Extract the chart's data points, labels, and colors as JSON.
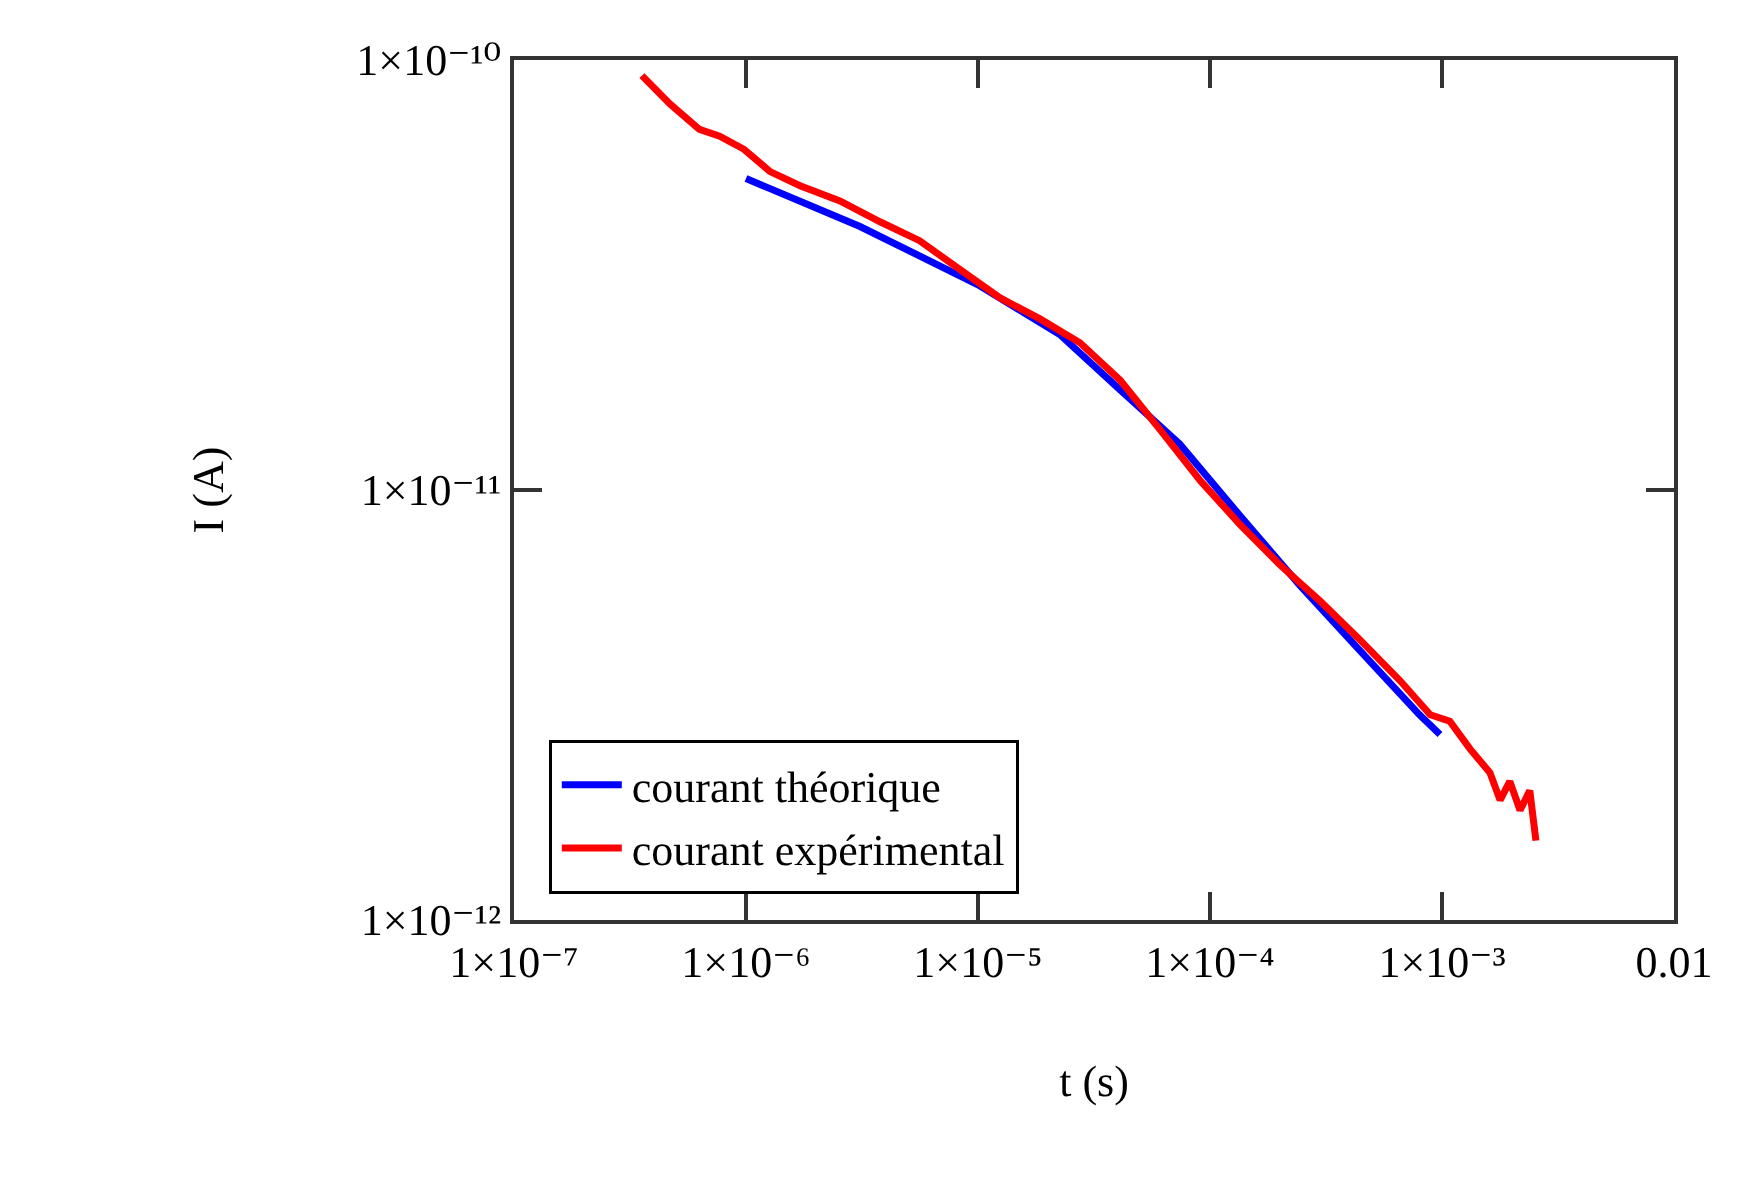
{
  "chart_data": {
    "type": "line",
    "xlabel": "t (s)",
    "ylabel": "I (A)",
    "log": "xy",
    "grid": false,
    "legend": "bottom left",
    "line_style": "solid",
    "marker": "none",
    "xlim": [
      1e-07,
      0.01
    ],
    "xticks": [
      {
        "value": 1e-07,
        "label": "1×10⁻⁷"
      },
      {
        "value": 1e-06,
        "label": "1×10⁻⁶"
      },
      {
        "value": 1e-05,
        "label": "1×10⁻⁵"
      },
      {
        "value": 0.0001,
        "label": "1×10⁻⁴"
      },
      {
        "value": 0.001,
        "label": "1×10⁻³"
      },
      0.01
    ],
    "ylim": [
      1e-12,
      1e-10
    ],
    "yticks": [
      {
        "value": 1e-12,
        "label": "1×10⁻¹²"
      },
      {
        "value": 1e-11,
        "label": "1×10⁻¹¹"
      },
      {
        "value": 1e-10,
        "label": "1×10⁻¹⁰"
      }
    ],
    "series": [
      {
        "name": "courant théorique",
        "color": "#0000ff",
        "x": [
          1e-06,
          3.1e-06,
          1e-05,
          2.25e-05,
          4.1e-05,
          7.4e-05,
          0.000135,
          0.000244,
          0.00044,
          0.0008,
          0.00098
        ],
        "values": [
          5.3e-11,
          4.1e-11,
          3e-11,
          2.3e-11,
          1.71e-11,
          1.28e-11,
          8.7e-12,
          6e-12,
          4.25e-12,
          3e-12,
          2.7e-12
        ]
      },
      {
        "name": "courant expérimental",
        "color": "#ff0000",
        "x": [
          3.56e-07,
          4.7e-07,
          6.3e-07,
          7.7e-07,
          9.8e-07,
          1.27e-06,
          1.71e-06,
          2.54e-06,
          3.8e-06,
          5.6e-06,
          8.4e-06,
          1.24e-05,
          1.85e-05,
          2.75e-05,
          4.1e-05,
          6.1e-05,
          9.1e-05,
          0.000135,
          0.0002,
          0.0003,
          0.00044,
          0.00066,
          0.00089,
          0.00108,
          0.00132,
          0.00161,
          0.00178,
          0.00196,
          0.00217,
          0.00239,
          0.00254
        ],
        "values": [
          9.2e-11,
          7.9e-11,
          6.9e-11,
          6.65e-11,
          6.2e-11,
          5.5e-11,
          5.1e-11,
          4.7e-11,
          4.2e-11,
          3.8e-11,
          3.25e-11,
          2.8e-11,
          2.5e-11,
          2.2e-11,
          1.8e-11,
          1.38e-11,
          1.05e-11,
          8.3e-12,
          6.7e-12,
          5.5e-12,
          4.5e-12,
          3.6e-12,
          3e-12,
          2.9e-12,
          2.5e-12,
          2.2e-12,
          1.9e-12,
          2.1e-12,
          1.8e-12,
          2e-12,
          1.53e-12
        ]
      }
    ]
  }
}
